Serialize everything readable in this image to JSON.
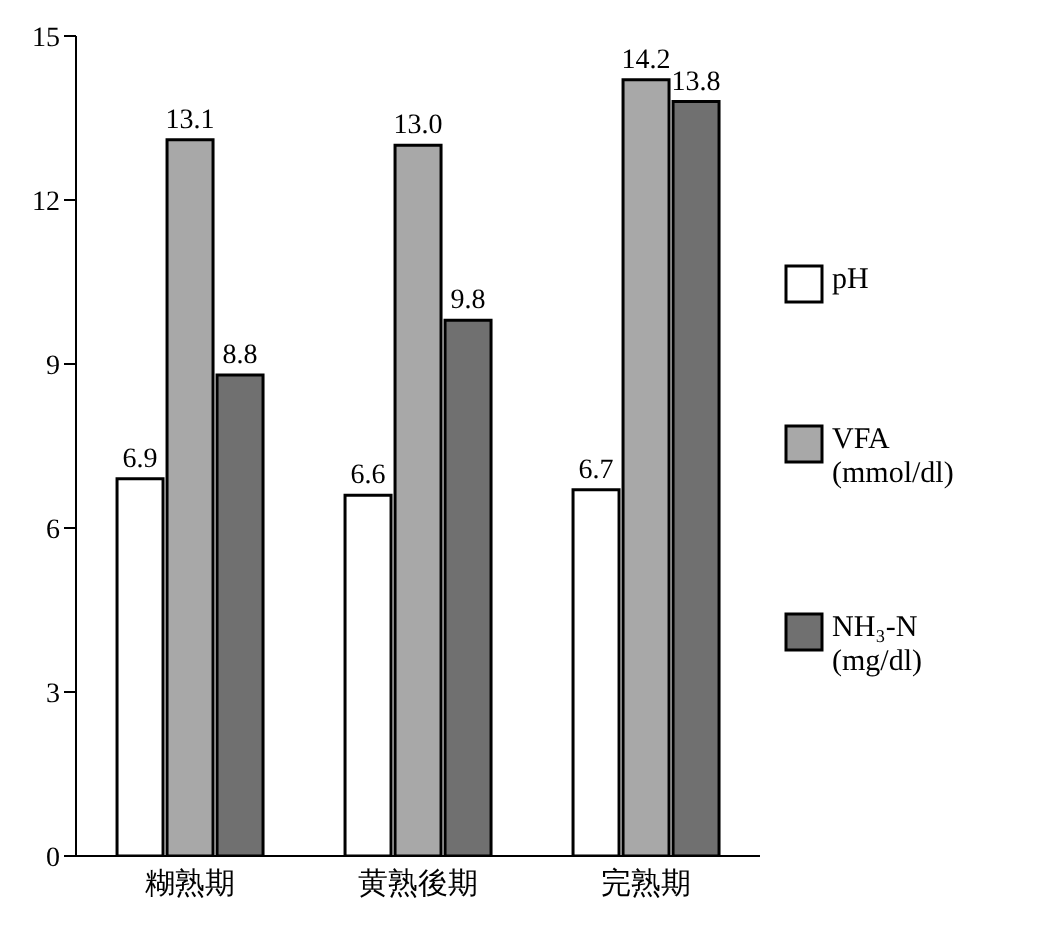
{
  "chart_data": {
    "type": "bar",
    "categories": [
      "糊熟期",
      "黄熟後期",
      "完熟期"
    ],
    "series": [
      {
        "name": "pH",
        "color": "#ffffff",
        "values": [
          6.9,
          6.6,
          6.7
        ],
        "value_labels": [
          "6.9",
          "6.6",
          "6.7"
        ]
      },
      {
        "name": "VFA (mmol/dl)",
        "color": "#a8a8a8",
        "values": [
          13.1,
          13.0,
          14.2
        ],
        "value_labels": [
          "13.1",
          "13.0",
          "14.2"
        ]
      },
      {
        "name": "NH₃-N (mg/dl)",
        "color": "#707070",
        "values": [
          8.8,
          9.8,
          13.8
        ],
        "value_labels": [
          "8.8",
          "9.8",
          "13.8"
        ]
      }
    ],
    "ylim": [
      0,
      15
    ],
    "yticks": [
      0,
      3,
      6,
      9,
      12,
      15
    ],
    "grid": false,
    "legend": "right"
  }
}
